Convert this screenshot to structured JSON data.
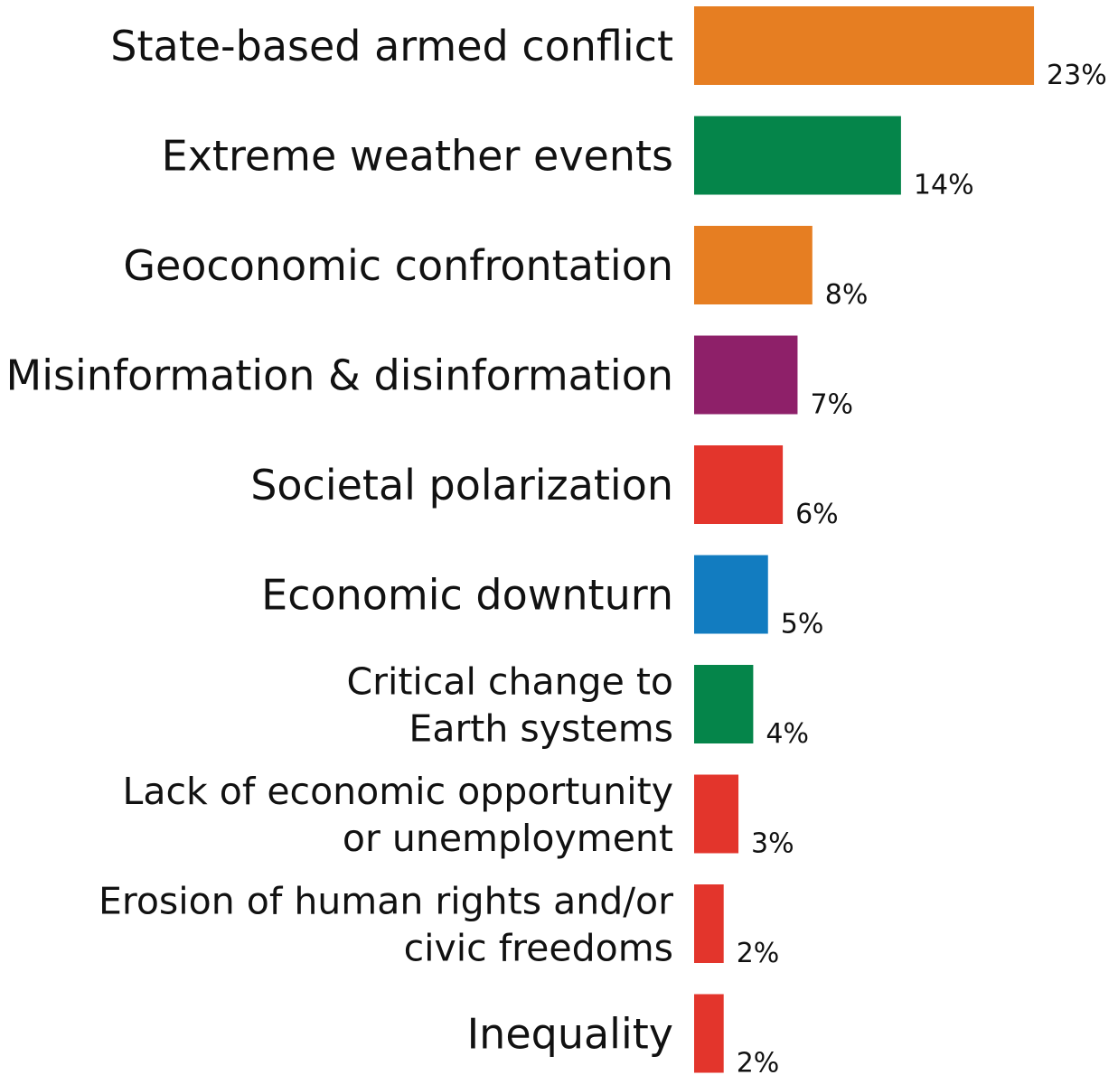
{
  "chart_data": {
    "type": "bar",
    "orientation": "horizontal",
    "title": "",
    "xlabel": "",
    "ylabel": "",
    "grid": false,
    "legend": "none",
    "xlim": [
      0,
      23
    ],
    "categories": [
      [
        "State-based armed conflict"
      ],
      [
        "Extreme weather events"
      ],
      [
        "Geoconomic confrontation"
      ],
      [
        "Misinformation & disinformation"
      ],
      [
        "Societal polarization"
      ],
      [
        "Economic downturn"
      ],
      [
        "Critical change to",
        "Earth systems"
      ],
      [
        "Lack of economic opportunity",
        "or unemployment"
      ],
      [
        "Erosion of human rights and/or",
        "civic freedoms"
      ],
      [
        "Inequality"
      ]
    ],
    "values": [
      23,
      14,
      8,
      7,
      6,
      5,
      4,
      3,
      2,
      2
    ],
    "value_labels": [
      "23%",
      "14%",
      "8%",
      "7%",
      "6%",
      "5%",
      "4%",
      "3%",
      "2%",
      "2%"
    ],
    "colors": [
      "#E67E22",
      "#05854A",
      "#E67E22",
      "#8E2069",
      "#E3352C",
      "#127CC0",
      "#05854A",
      "#E3352C",
      "#E3352C",
      "#E3352C"
    ]
  }
}
